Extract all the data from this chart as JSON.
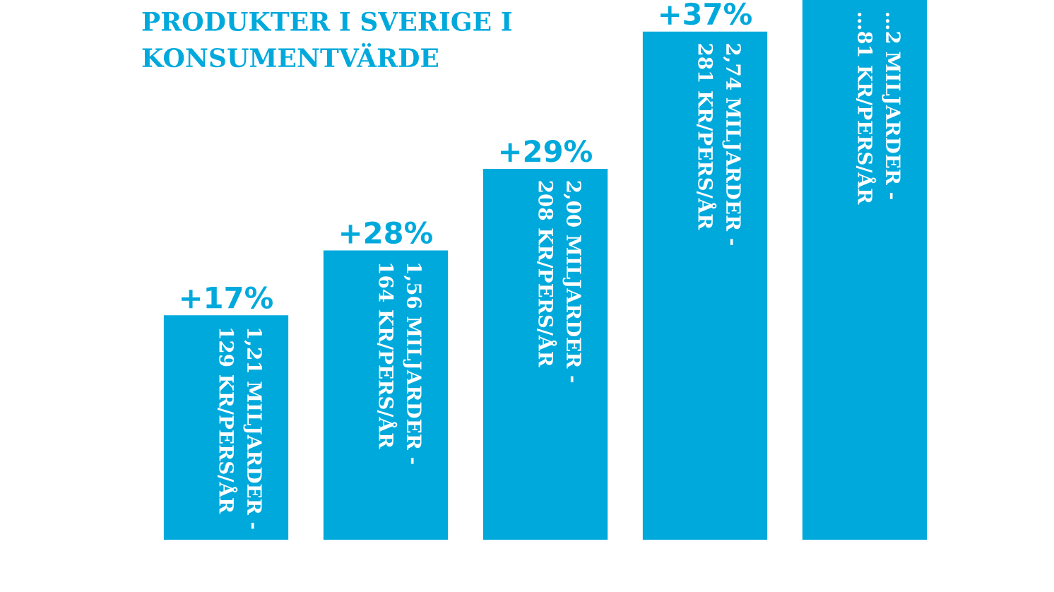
{
  "chart_data": {
    "type": "bar",
    "title": "PRODUKTER I SVERIGE I\nKONSUMENTVÄRDE",
    "ylim": [
      0,
      2.91
    ],
    "categories": [
      null,
      null,
      null,
      null,
      null
    ],
    "values": [
      1.21,
      1.56,
      2.0,
      2.74,
      2.91
    ],
    "color": "#00a9dc",
    "value_labels": [
      "1,21 MILJARDER -\n129 KR/PERS/ÅR",
      "1,56 MILJARDER -\n164 KR/PERS/ÅR",
      "2,00 MILJARDER -\n208 KR/PERS/ÅR",
      "2,74 MILJARDER -\n281 KR/PERS/ÅR",
      "…2 MILJARDER -\n…81 KR/PERS/ÅR"
    ],
    "annotations": [
      "+17%",
      "+28%",
      "+29%",
      "+37%"
    ],
    "grid": false,
    "legend": false
  }
}
